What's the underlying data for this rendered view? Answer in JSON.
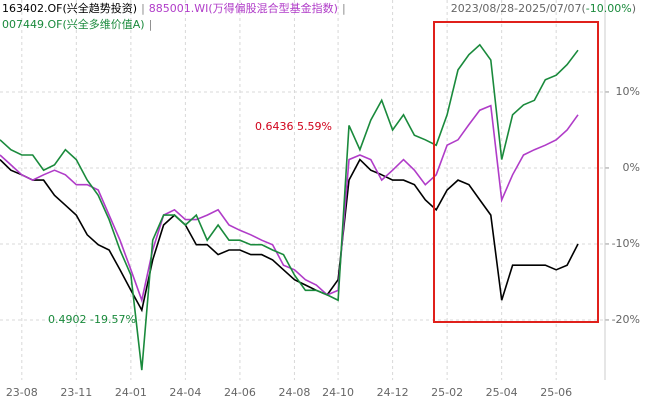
{
  "chart_data": {
    "type": "line",
    "period_label": [
      "2023/08/28-2025/07/07(",
      "-10.00%",
      ")"
    ],
    "period_colors": [
      "#666666",
      "#1a8a3c",
      "#666666"
    ],
    "legend_separator": "|",
    "annotations": [
      {
        "text": "0.6436 5.59%",
        "color": "#d0021b"
      },
      {
        "text": "0.4902 -19.57%",
        "color": "#1a8a3c"
      }
    ],
    "categories": [
      null,
      null,
      "23-08",
      null,
      null,
      null,
      null,
      "23-11",
      null,
      null,
      null,
      null,
      "24-01",
      null,
      null,
      null,
      null,
      "24-04",
      null,
      null,
      null,
      null,
      "24-06",
      null,
      null,
      null,
      null,
      "24-08",
      null,
      null,
      null,
      "24-10",
      null,
      null,
      null,
      null,
      "24-12",
      null,
      null,
      null,
      null,
      "25-02",
      null,
      null,
      null,
      null,
      "25-04",
      null,
      null,
      null,
      null,
      "25-06",
      null,
      null
    ],
    "ylim": [
      -27.9,
      22.1
    ],
    "yticks": [
      {
        "value": 10,
        "label": "10%"
      },
      {
        "value": 0,
        "label": "0%"
      },
      {
        "value": -10,
        "label": "-10%"
      },
      {
        "value": -20,
        "label": "-20%"
      }
    ],
    "grid": true,
    "series": [
      {
        "name": "163402.OF(兴全趋势投资)",
        "color": "#000000",
        "values": [
          1.1,
          -0.3,
          -0.9,
          -1.6,
          -1.6,
          -3.6,
          -4.9,
          -6.2,
          -8.8,
          -10.1,
          -10.8,
          -13.4,
          -16.1,
          -18.7,
          -12.1,
          -7.5,
          -6.2,
          -7.5,
          -10.1,
          -10.1,
          -11.4,
          -10.8,
          -10.8,
          -11.4,
          -11.4,
          -12.1,
          -13.4,
          -14.7,
          -15.4,
          -16.1,
          -16.7,
          -14.7,
          -1.6,
          1.1,
          -0.3,
          -0.9,
          -1.6,
          -1.6,
          -2.2,
          -4.2,
          -5.5,
          -2.9,
          -1.6,
          -2.2,
          -4.2,
          -6.2,
          -17.4,
          -12.8,
          -12.8,
          -12.8,
          -12.8,
          -13.4,
          -12.8,
          -10.0
        ]
      },
      {
        "name": "885001.WI(万得偏股混合型基金指数)",
        "color": "#b03cc8",
        "values": [
          1.7,
          0.4,
          -0.9,
          -1.6,
          -0.9,
          -0.3,
          -0.9,
          -2.2,
          -2.2,
          -2.9,
          -6.2,
          -9.5,
          -13.4,
          -17.4,
          -10.8,
          -6.2,
          -5.5,
          -6.8,
          -6.8,
          -6.2,
          -5.5,
          -7.5,
          -8.2,
          -8.8,
          -9.5,
          -10.1,
          -12.8,
          -13.4,
          -14.7,
          -15.4,
          -16.7,
          -16.1,
          1.1,
          1.7,
          1.1,
          -1.6,
          -0.3,
          1.1,
          -0.3,
          -2.2,
          -0.9,
          3.0,
          3.7,
          5.7,
          7.6,
          8.2,
          -4.2,
          -0.9,
          1.7,
          2.4,
          3.0,
          3.7,
          5.0,
          7.0
        ]
      },
      {
        "name": "007449.OF(兴全多维价值A)",
        "color": "#1a8a3c",
        "values": [
          3.7,
          2.4,
          1.7,
          1.7,
          -0.3,
          0.4,
          2.4,
          1.1,
          -1.6,
          -3.6,
          -6.8,
          -10.8,
          -14.1,
          -26.6,
          -9.5,
          -6.2,
          -6.2,
          -7.5,
          -6.2,
          -9.5,
          -7.5,
          -9.5,
          -9.5,
          -10.1,
          -10.1,
          -10.8,
          -11.4,
          -14.1,
          -16.1,
          -16.1,
          -16.7,
          -17.4,
          5.6,
          2.4,
          6.3,
          8.9,
          5.0,
          7.0,
          4.3,
          3.7,
          3.0,
          7.0,
          12.9,
          14.9,
          16.2,
          14.2,
          1.1,
          7.0,
          8.3,
          8.9,
          11.6,
          12.2,
          13.6,
          15.5
        ]
      }
    ]
  }
}
